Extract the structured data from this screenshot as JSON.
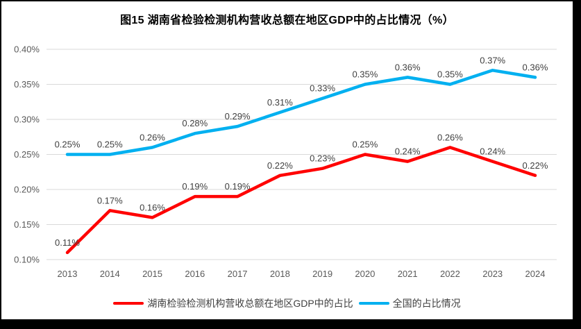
{
  "chart_data": {
    "type": "line",
    "title": "图15 湖南省检验检测机构营收总额在地区GDP中的占比情况（%）",
    "categories": [
      "2013",
      "2014",
      "2015",
      "2016",
      "2017",
      "2018",
      "2019",
      "2020",
      "2021",
      "2022",
      "2023",
      "2024"
    ],
    "series": [
      {
        "name": "湖南检验检测机构营收总额在地区GDP中的占比",
        "color": "#FF0000",
        "values": [
          0.11,
          0.17,
          0.16,
          0.19,
          0.19,
          0.22,
          0.23,
          0.25,
          0.24,
          0.26,
          0.24,
          0.22
        ],
        "labels": [
          "0.11%",
          "0.17%",
          "0.16%",
          "0.19%",
          "0.19%",
          "0.22%",
          "0.23%",
          "0.25%",
          "0.24%",
          "0.26%",
          "0.24%",
          "0.22%"
        ]
      },
      {
        "name": "全国的占比情况",
        "color": "#00B0F0",
        "values": [
          0.25,
          0.25,
          0.26,
          0.28,
          0.29,
          0.31,
          0.33,
          0.35,
          0.36,
          0.35,
          0.37,
          0.36
        ],
        "labels": [
          "0.25%",
          "0.25%",
          "0.26%",
          "0.28%",
          "0.29%",
          "0.31%",
          "0.33%",
          "0.35%",
          "0.36%",
          "0.35%",
          "0.37%",
          "0.36%"
        ]
      }
    ],
    "y_axis": {
      "min": 0.1,
      "max": 0.4,
      "step": 0.05,
      "tick_labels": [
        "0.10%",
        "0.15%",
        "0.20%",
        "0.25%",
        "0.30%",
        "0.35%",
        "0.40%"
      ]
    },
    "grid": true,
    "grid_color": "#D9D9D9",
    "legend_position": "bottom"
  }
}
